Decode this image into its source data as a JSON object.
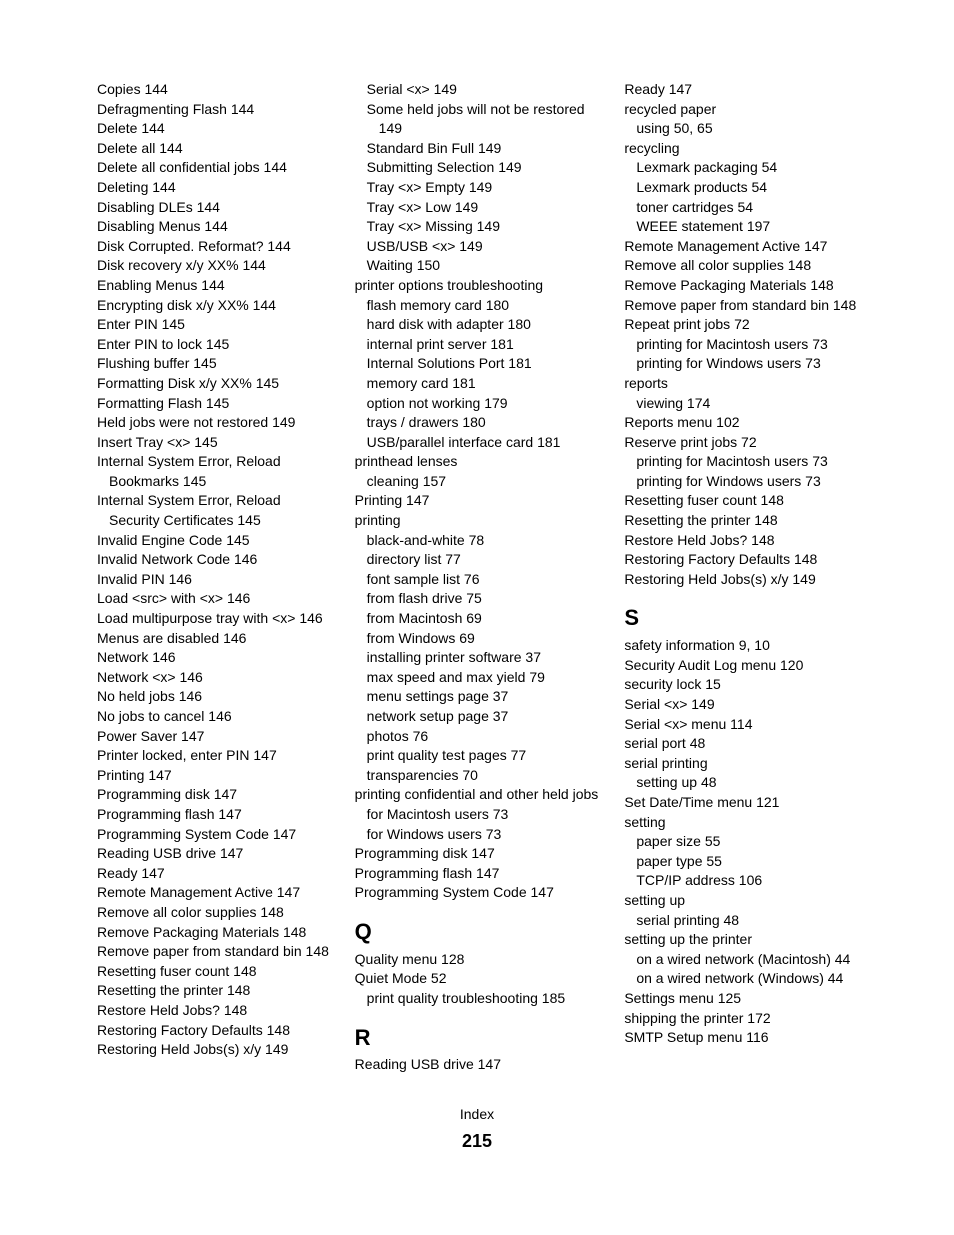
{
  "footer": {
    "label": "Index",
    "page": "215"
  },
  "sections": {
    "q": "Q",
    "r": "R",
    "s": "S"
  },
  "col1": [
    {
      "t": "Copies  144"
    },
    {
      "t": "Defragmenting Flash  144"
    },
    {
      "t": "Delete  144"
    },
    {
      "t": "Delete all  144"
    },
    {
      "t": "Delete all confidential jobs  144"
    },
    {
      "t": "Deleting  144"
    },
    {
      "t": "Disabling DLEs  144"
    },
    {
      "t": "Disabling Menus  144"
    },
    {
      "t": "Disk Corrupted. Reformat?  144"
    },
    {
      "t": "Disk recovery x/y XX%  144"
    },
    {
      "t": "Enabling Menus  144"
    },
    {
      "t": "Encrypting disk x/y XX%  144"
    },
    {
      "t": "Enter PIN  145"
    },
    {
      "t": "Enter PIN to lock  145"
    },
    {
      "t": "Flushing buffer  145"
    },
    {
      "t": "Formatting Disk x/y XX%  145"
    },
    {
      "t": "Formatting Flash  145"
    },
    {
      "t": "Held jobs were not restored  149"
    },
    {
      "t": "Insert Tray <x>  145"
    },
    {
      "t": "Internal System Error, Reload Bookmarks  145"
    },
    {
      "t": "Internal System Error, Reload Security Certificates  145"
    },
    {
      "t": "Invalid Engine Code  145"
    },
    {
      "t": "Invalid Network Code  146"
    },
    {
      "t": "Invalid PIN  146"
    },
    {
      "t": "Load <src> with <x>  146"
    },
    {
      "t": "Load multipurpose tray with <x>  146"
    },
    {
      "t": "Menus are disabled  146"
    },
    {
      "t": "Network  146"
    },
    {
      "t": "Network <x>  146"
    },
    {
      "t": "No held jobs  146"
    },
    {
      "t": "No jobs to cancel  146"
    },
    {
      "t": "Power Saver  147"
    },
    {
      "t": "Printer locked, enter PIN  147"
    },
    {
      "t": "Printing  147"
    },
    {
      "t": "Programming disk  147"
    },
    {
      "t": "Programming flash  147"
    },
    {
      "t": "Programming System Code  147"
    },
    {
      "t": "Reading USB drive  147"
    },
    {
      "t": "Ready  147"
    },
    {
      "t": "Remote Management Active  147"
    },
    {
      "t": "Remove all color supplies  148"
    },
    {
      "t": "Remove Packaging Materials  148"
    },
    {
      "t": "Remove paper from standard bin  148"
    },
    {
      "t": "Resetting fuser count  148"
    },
    {
      "t": "Resetting the printer  148"
    },
    {
      "t": "Restore Held Jobs?  148"
    },
    {
      "t": "Restoring Factory Defaults  148"
    },
    {
      "t": "Restoring Held Jobs(s) x/y  149"
    }
  ],
  "col2a": [
    {
      "t": "Serial <x>  149"
    },
    {
      "t": "Some held jobs will not be restored  149"
    },
    {
      "t": "Standard Bin Full  149"
    },
    {
      "t": "Submitting Selection  149"
    },
    {
      "t": "Tray <x> Empty  149"
    },
    {
      "t": "Tray <x> Low  149"
    },
    {
      "t": "Tray <x> Missing  149"
    },
    {
      "t": "USB/USB <x>  149"
    },
    {
      "t": "Waiting  150"
    },
    {
      "t": "printer options troubleshooting",
      "top": true
    },
    {
      "t": "flash memory card  180"
    },
    {
      "t": "hard disk with adapter  180"
    },
    {
      "t": "internal print server  181"
    },
    {
      "t": "Internal Solutions Port  181"
    },
    {
      "t": "memory card  181"
    },
    {
      "t": "option not working  179"
    },
    {
      "t": "trays / drawers  180"
    },
    {
      "t": "USB/parallel interface card  181"
    },
    {
      "t": "printhead lenses",
      "top": true
    },
    {
      "t": "cleaning  157"
    },
    {
      "t": "Printing  147",
      "top": true
    },
    {
      "t": "printing",
      "top": true
    },
    {
      "t": "black-and-white  78"
    },
    {
      "t": "directory list  77"
    },
    {
      "t": "font sample list  76"
    },
    {
      "t": "from flash drive  75"
    },
    {
      "t": "from Macintosh  69"
    },
    {
      "t": "from Windows  69"
    },
    {
      "t": "installing printer software  37"
    },
    {
      "t": "max speed and max yield  79"
    },
    {
      "t": "menu settings page  37"
    },
    {
      "t": "network setup page  37"
    },
    {
      "t": "photos  76"
    },
    {
      "t": "print quality test pages  77"
    },
    {
      "t": "transparencies  70"
    },
    {
      "t": "printing confidential and other held jobs",
      "top": true
    },
    {
      "t": "for Macintosh users  73"
    },
    {
      "t": "for Windows users  73"
    },
    {
      "t": "Programming disk  147",
      "top": true
    },
    {
      "t": "Programming flash  147",
      "top": true
    },
    {
      "t": "Programming System Code  147",
      "top": true
    }
  ],
  "col2q": [
    {
      "t": "Quality menu  128",
      "top": true
    },
    {
      "t": "Quiet Mode  52",
      "top": true
    },
    {
      "t": "print quality troubleshooting  185"
    }
  ],
  "col2r": [
    {
      "t": "Reading USB drive  147",
      "top": true
    }
  ],
  "col3a": [
    {
      "t": "Ready  147",
      "top": true
    },
    {
      "t": "recycled paper",
      "top": true
    },
    {
      "t": "using  50, 65"
    },
    {
      "t": "recycling",
      "top": true
    },
    {
      "t": "Lexmark packaging  54"
    },
    {
      "t": "Lexmark products  54"
    },
    {
      "t": "toner cartridges  54"
    },
    {
      "t": "WEEE statement  197"
    },
    {
      "t": "Remote Management Active  147",
      "top": true
    },
    {
      "t": "Remove all color supplies  148",
      "top": true
    },
    {
      "t": "Remove Packaging Materials  148",
      "top": true
    },
    {
      "t": "Remove paper from standard bin  148",
      "top": true
    },
    {
      "t": "Repeat print jobs  72",
      "top": true
    },
    {
      "t": "printing for Macintosh users  73"
    },
    {
      "t": "printing for Windows users  73"
    },
    {
      "t": "reports",
      "top": true
    },
    {
      "t": "viewing  174"
    },
    {
      "t": "Reports menu  102",
      "top": true
    },
    {
      "t": "Reserve print jobs  72",
      "top": true
    },
    {
      "t": "printing for Macintosh users  73"
    },
    {
      "t": "printing for Windows users  73"
    },
    {
      "t": "Resetting fuser count  148",
      "top": true
    },
    {
      "t": "Resetting the printer  148",
      "top": true
    },
    {
      "t": "Restore Held Jobs?  148",
      "top": true
    },
    {
      "t": "Restoring Factory Defaults  148",
      "top": true
    },
    {
      "t": "Restoring Held Jobs(s) x/y  149",
      "top": true
    }
  ],
  "col3s": [
    {
      "t": "safety information  9, 10",
      "top": true
    },
    {
      "t": "Security Audit Log menu  120",
      "top": true
    },
    {
      "t": "security lock  15",
      "top": true
    },
    {
      "t": "Serial <x>  149",
      "top": true
    },
    {
      "t": "Serial <x> menu  114",
      "top": true
    },
    {
      "t": "serial port  48",
      "top": true
    },
    {
      "t": "serial printing",
      "top": true
    },
    {
      "t": "setting up  48"
    },
    {
      "t": "Set Date/Time menu  121",
      "top": true
    },
    {
      "t": "setting",
      "top": true
    },
    {
      "t": "paper size  55"
    },
    {
      "t": "paper type  55"
    },
    {
      "t": "TCP/IP address  106"
    },
    {
      "t": "setting up",
      "top": true
    },
    {
      "t": "serial printing  48"
    },
    {
      "t": "setting up the printer",
      "top": true
    },
    {
      "t": "on a wired network (Macintosh)  44"
    },
    {
      "t": "on a wired network (Windows)  44"
    },
    {
      "t": "Settings menu  125",
      "top": true
    },
    {
      "t": "shipping the printer  172",
      "top": true
    },
    {
      "t": "SMTP Setup menu  116",
      "top": true
    }
  ]
}
